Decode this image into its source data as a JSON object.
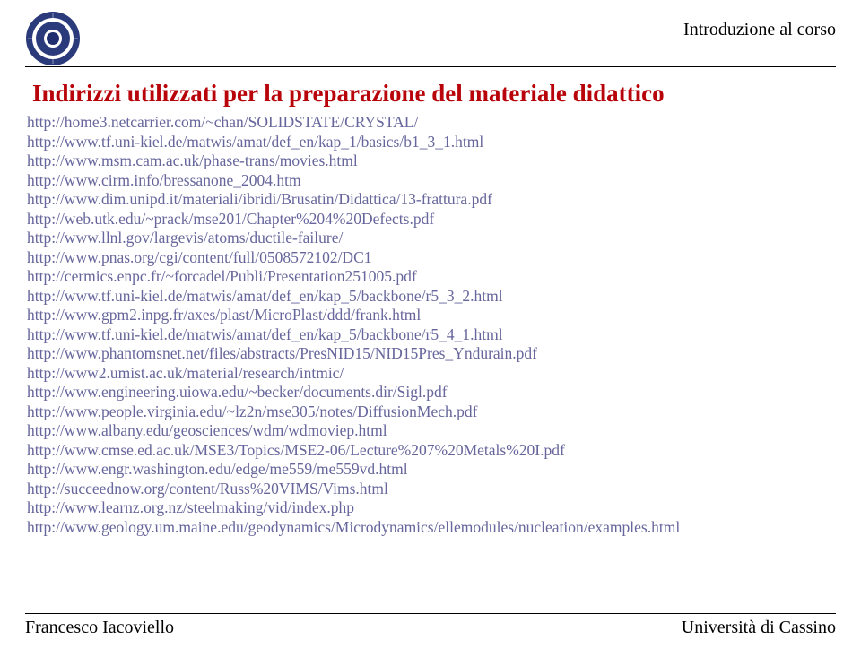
{
  "header": {
    "course_label": "Introduzione al corso"
  },
  "title": "Indirizzi utilizzati per la preparazione del materiale didattico",
  "links": [
    "http://home3.netcarrier.com/~chan/SOLIDSTATE/CRYSTAL/",
    "http://www.tf.uni-kiel.de/matwis/amat/def_en/kap_1/basics/b1_3_1.html",
    "http://www.msm.cam.ac.uk/phase-trans/movies.html",
    "http://www.cirm.info/bressanone_2004.htm",
    "http://www.dim.unipd.it/materiali/ibridi/Brusatin/Didattica/13-frattura.pdf",
    "http://web.utk.edu/~prack/mse201/Chapter%204%20Defects.pdf",
    "http://www.llnl.gov/largevis/atoms/ductile-failure/",
    "http://www.pnas.org/cgi/content/full/0508572102/DC1",
    "http://cermics.enpc.fr/~forcadel/Publi/Presentation251005.pdf",
    "http://www.tf.uni-kiel.de/matwis/amat/def_en/kap_5/backbone/r5_3_2.html",
    "http://www.gpm2.inpg.fr/axes/plast/MicroPlast/ddd/frank.html",
    "http://www.tf.uni-kiel.de/matwis/amat/def_en/kap_5/backbone/r5_4_1.html",
    "http://www.phantomsnet.net/files/abstracts/PresNID15/NID15Pres_Yndurain.pdf",
    "http://www2.umist.ac.uk/material/research/intmic/",
    "http://www.engineering.uiowa.edu/~becker/documents.dir/Sigl.pdf",
    "http://www.people.virginia.edu/~lz2n/mse305/notes/DiffusionMech.pdf",
    "http://www.albany.edu/geosciences/wdm/wdmoviep.html",
    "http://www.cmse.ed.ac.uk/MSE3/Topics/MSE2-06/Lecture%207%20Metals%20I.pdf",
    "http://www.engr.washington.edu/edge/me559/me559vd.html",
    "http://succeednow.org/content/Russ%20VIMS/Vims.html",
    "http://www.learnz.org.nz/steelmaking/vid/index.php",
    "http://www.geology.um.maine.edu/geodynamics/Microdynamics/ellemodules/nucleation/examples.html"
  ],
  "footer": {
    "author": "Francesco Iacoviello",
    "affiliation": "Università di Cassino"
  },
  "colors": {
    "title_color": "#b8030a",
    "link_color": "#66669c",
    "rule_color": "#000000",
    "logo_ring": "#2a3a7a",
    "logo_inner": "#1e2e6e"
  }
}
